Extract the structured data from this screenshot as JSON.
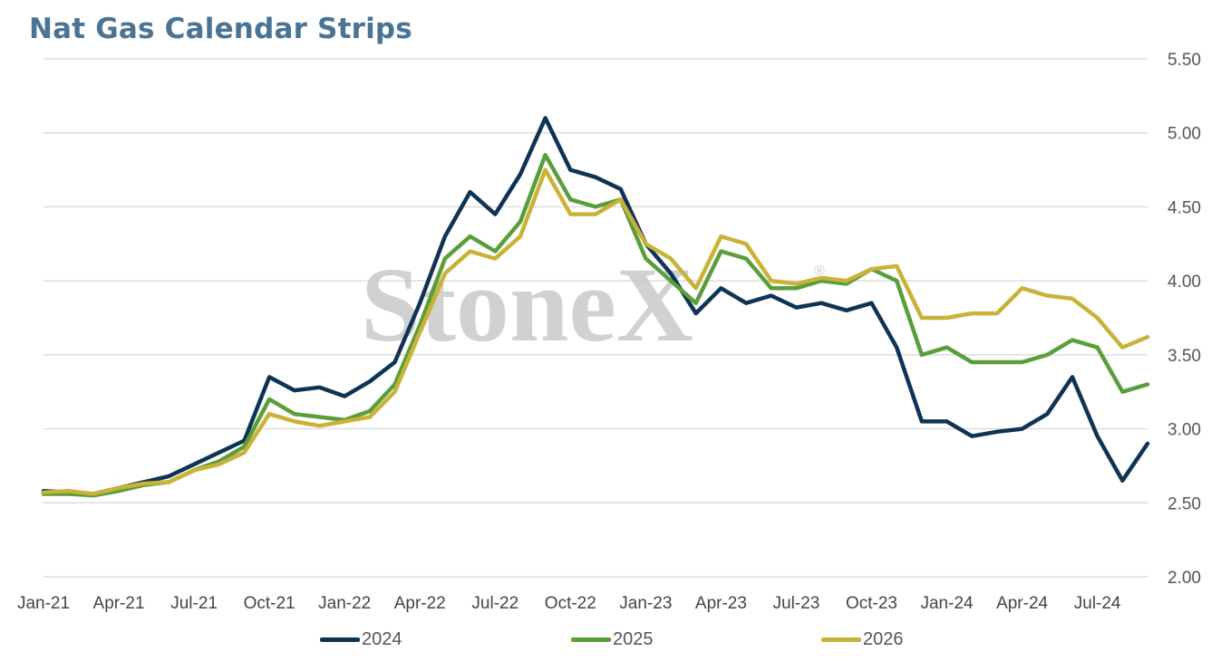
{
  "chart_data": {
    "type": "line",
    "title": "Nat Gas Calendar Strips",
    "xlabel": "",
    "ylabel": "",
    "x_tick_labels": [
      "Jan-21",
      "Apr-21",
      "Jul-21",
      "Oct-21",
      "Jan-22",
      "Apr-22",
      "Jul-22",
      "Oct-22",
      "Jan-23",
      "Apr-23",
      "Jul-23",
      "Oct-23",
      "Jan-24",
      "Apr-24",
      "Jul-24"
    ],
    "x_range": [
      "2021-01",
      "2024-09"
    ],
    "ylim": [
      2.0,
      5.5
    ],
    "y_ticks": [
      "2.00",
      "2.50",
      "3.00",
      "3.50",
      "4.00",
      "4.50",
      "5.00",
      "5.50"
    ],
    "y_axis_side": "right",
    "grid": true,
    "legend_position": "bottom",
    "watermark": "StoneX",
    "series": [
      {
        "name": "2024",
        "color": "#0e3355",
        "points": [
          [
            "2021-01",
            2.58
          ],
          [
            "2021-02",
            2.57
          ],
          [
            "2021-03",
            2.56
          ],
          [
            "2021-04",
            2.6
          ],
          [
            "2021-05",
            2.64
          ],
          [
            "2021-06",
            2.68
          ],
          [
            "2021-07",
            2.76
          ],
          [
            "2021-08",
            2.84
          ],
          [
            "2021-09",
            2.92
          ],
          [
            "2021-10",
            3.35
          ],
          [
            "2021-11",
            3.26
          ],
          [
            "2021-12",
            3.28
          ],
          [
            "2022-01",
            3.22
          ],
          [
            "2022-02",
            3.32
          ],
          [
            "2022-03",
            3.45
          ],
          [
            "2022-04",
            3.85
          ],
          [
            "2022-05",
            4.3
          ],
          [
            "2022-06",
            4.6
          ],
          [
            "2022-07",
            4.45
          ],
          [
            "2022-08",
            4.72
          ],
          [
            "2022-09",
            5.1
          ],
          [
            "2022-10",
            4.75
          ],
          [
            "2022-11",
            4.7
          ],
          [
            "2022-12",
            4.62
          ],
          [
            "2023-01",
            4.25
          ],
          [
            "2023-02",
            4.05
          ],
          [
            "2023-03",
            3.78
          ],
          [
            "2023-04",
            3.95
          ],
          [
            "2023-05",
            3.85
          ],
          [
            "2023-06",
            3.9
          ],
          [
            "2023-07",
            3.82
          ],
          [
            "2023-08",
            3.85
          ],
          [
            "2023-09",
            3.8
          ],
          [
            "2023-10",
            3.85
          ],
          [
            "2023-11",
            3.55
          ],
          [
            "2023-12",
            3.05
          ],
          [
            "2024-01",
            3.05
          ],
          [
            "2024-02",
            2.95
          ],
          [
            "2024-03",
            2.98
          ],
          [
            "2024-04",
            3.0
          ],
          [
            "2024-05",
            3.1
          ],
          [
            "2024-06",
            3.35
          ],
          [
            "2024-07",
            2.95
          ],
          [
            "2024-08",
            2.65
          ],
          [
            "2024-09",
            2.9
          ]
        ]
      },
      {
        "name": "2025",
        "color": "#5a9e3a",
        "points": [
          [
            "2021-01",
            2.56
          ],
          [
            "2021-02",
            2.56
          ],
          [
            "2021-03",
            2.55
          ],
          [
            "2021-04",
            2.58
          ],
          [
            "2021-05",
            2.62
          ],
          [
            "2021-06",
            2.64
          ],
          [
            "2021-07",
            2.72
          ],
          [
            "2021-08",
            2.78
          ],
          [
            "2021-09",
            2.88
          ],
          [
            "2021-10",
            3.2
          ],
          [
            "2021-11",
            3.1
          ],
          [
            "2021-12",
            3.08
          ],
          [
            "2022-01",
            3.06
          ],
          [
            "2022-02",
            3.12
          ],
          [
            "2022-03",
            3.3
          ],
          [
            "2022-04",
            3.7
          ],
          [
            "2022-05",
            4.15
          ],
          [
            "2022-06",
            4.3
          ],
          [
            "2022-07",
            4.2
          ],
          [
            "2022-08",
            4.4
          ],
          [
            "2022-09",
            4.85
          ],
          [
            "2022-10",
            4.55
          ],
          [
            "2022-11",
            4.5
          ],
          [
            "2022-12",
            4.55
          ],
          [
            "2023-01",
            4.15
          ],
          [
            "2023-02",
            4.0
          ],
          [
            "2023-03",
            3.85
          ],
          [
            "2023-04",
            4.2
          ],
          [
            "2023-05",
            4.15
          ],
          [
            "2023-06",
            3.95
          ],
          [
            "2023-07",
            3.95
          ],
          [
            "2023-08",
            4.0
          ],
          [
            "2023-09",
            3.98
          ],
          [
            "2023-10",
            4.08
          ],
          [
            "2023-11",
            4.0
          ],
          [
            "2023-12",
            3.5
          ],
          [
            "2024-01",
            3.55
          ],
          [
            "2024-02",
            3.45
          ],
          [
            "2024-03",
            3.45
          ],
          [
            "2024-04",
            3.45
          ],
          [
            "2024-05",
            3.5
          ],
          [
            "2024-06",
            3.6
          ],
          [
            "2024-07",
            3.55
          ],
          [
            "2024-08",
            3.25
          ],
          [
            "2024-09",
            3.3
          ]
        ]
      },
      {
        "name": "2026",
        "color": "#c9b237",
        "points": [
          [
            "2021-01",
            2.57
          ],
          [
            "2021-02",
            2.58
          ],
          [
            "2021-03",
            2.56
          ],
          [
            "2021-04",
            2.6
          ],
          [
            "2021-05",
            2.63
          ],
          [
            "2021-06",
            2.64
          ],
          [
            "2021-07",
            2.72
          ],
          [
            "2021-08",
            2.76
          ],
          [
            "2021-09",
            2.84
          ],
          [
            "2021-10",
            3.1
          ],
          [
            "2021-11",
            3.05
          ],
          [
            "2021-12",
            3.02
          ],
          [
            "2022-01",
            3.05
          ],
          [
            "2022-02",
            3.08
          ],
          [
            "2022-03",
            3.25
          ],
          [
            "2022-04",
            3.65
          ],
          [
            "2022-05",
            4.05
          ],
          [
            "2022-06",
            4.2
          ],
          [
            "2022-07",
            4.15
          ],
          [
            "2022-08",
            4.3
          ],
          [
            "2022-09",
            4.75
          ],
          [
            "2022-10",
            4.45
          ],
          [
            "2022-11",
            4.45
          ],
          [
            "2022-12",
            4.55
          ],
          [
            "2023-01",
            4.25
          ],
          [
            "2023-02",
            4.15
          ],
          [
            "2023-03",
            3.95
          ],
          [
            "2023-04",
            4.3
          ],
          [
            "2023-05",
            4.25
          ],
          [
            "2023-06",
            4.0
          ],
          [
            "2023-07",
            3.98
          ],
          [
            "2023-08",
            4.02
          ],
          [
            "2023-09",
            4.0
          ],
          [
            "2023-10",
            4.08
          ],
          [
            "2023-11",
            4.1
          ],
          [
            "2023-12",
            3.75
          ],
          [
            "2024-01",
            3.75
          ],
          [
            "2024-02",
            3.78
          ],
          [
            "2024-03",
            3.78
          ],
          [
            "2024-04",
            3.95
          ],
          [
            "2024-05",
            3.9
          ],
          [
            "2024-06",
            3.88
          ],
          [
            "2024-07",
            3.75
          ],
          [
            "2024-08",
            3.55
          ],
          [
            "2024-09",
            3.62
          ]
        ]
      }
    ]
  }
}
